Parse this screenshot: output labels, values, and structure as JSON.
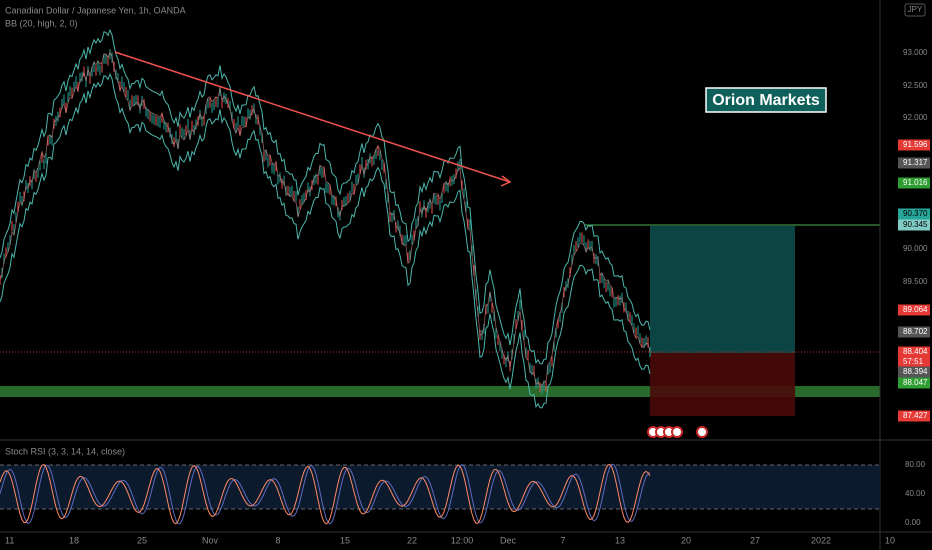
{
  "header": {
    "symbol": "Canadian Dollar / Japanese Yen, 1h, OANDA",
    "indicator": "BB (20, high, 2, 0)",
    "currency": "JPY"
  },
  "watermark": "Orion Markets",
  "price_axis": [
    "93.000",
    "92.500",
    "92.000",
    "91.596",
    "91.317",
    "91.016",
    "90.370",
    "90.345",
    "90.000",
    "89.500",
    "89.064",
    "88.702",
    "88.404",
    "57:51",
    "88.394",
    "88.047",
    "87.427"
  ],
  "time_axis": [
    "11",
    "18",
    "25",
    "Nov",
    "8",
    "15",
    "22",
    "12:00",
    "Dec",
    "7",
    "13",
    "20",
    "27",
    "2022",
    "10"
  ],
  "stoch": {
    "title": "Stoch RSI (3, 3, 14, 14, close)",
    "axis": [
      "80.00",
      "40.00",
      "0.00"
    ]
  }
}
